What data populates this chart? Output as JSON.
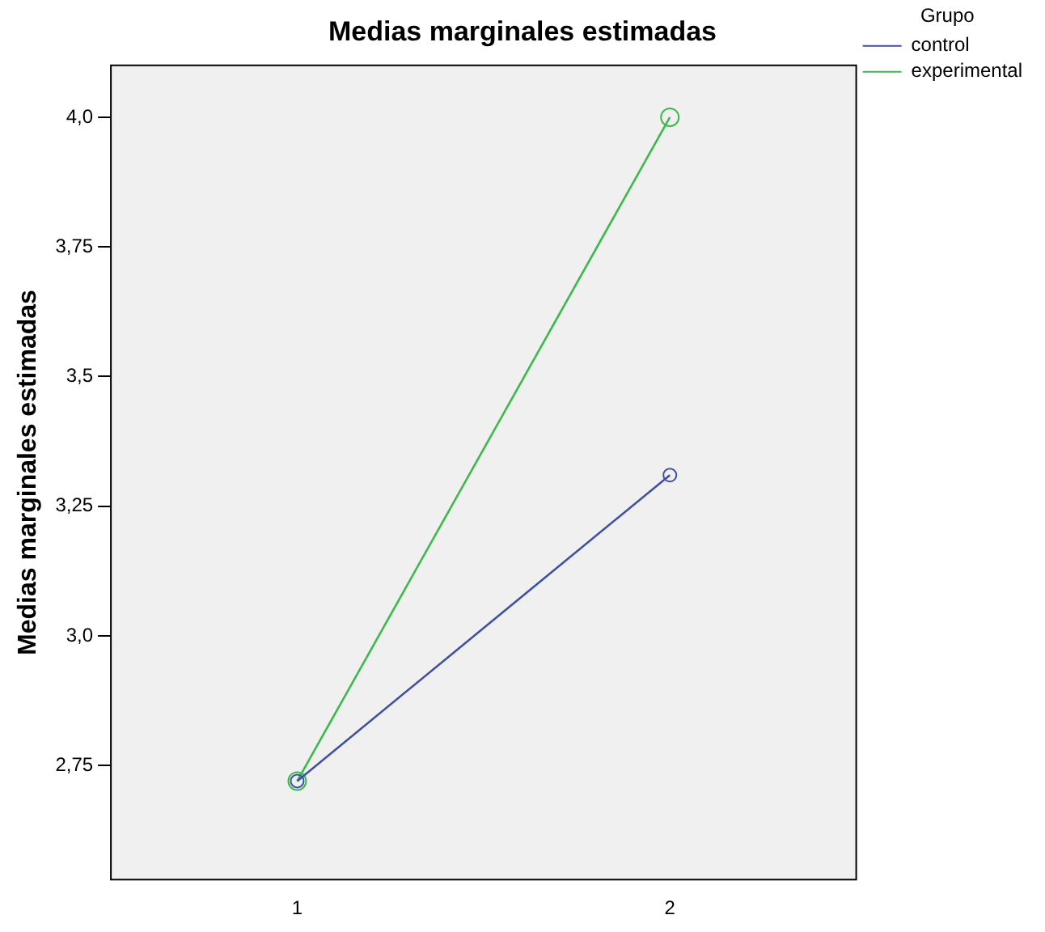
{
  "chart_data": {
    "type": "line",
    "title": "Medias marginales estimadas",
    "ylabel": "Medias marginales estimadas",
    "legend_title": "Grupo",
    "categories": [
      "1",
      "2"
    ],
    "series": [
      {
        "name": "control",
        "color": "#3f4fa8",
        "values": [
          2.72,
          3.31
        ]
      },
      {
        "name": "experimental",
        "color": "#3cb94a",
        "values": [
          2.72,
          4.0
        ]
      }
    ],
    "ylim": [
      2.53,
      4.1
    ],
    "yticks": [
      {
        "value": 2.75,
        "label": "2,75"
      },
      {
        "value": 3.0,
        "label": "3,0"
      },
      {
        "value": 3.25,
        "label": "3,25"
      },
      {
        "value": 3.5,
        "label": "3,5"
      },
      {
        "value": 3.75,
        "label": "3,75"
      },
      {
        "value": 4.0,
        "label": "4,0"
      }
    ],
    "grid": false,
    "legend": "top right",
    "marker": "circle",
    "line_style": "solid"
  }
}
